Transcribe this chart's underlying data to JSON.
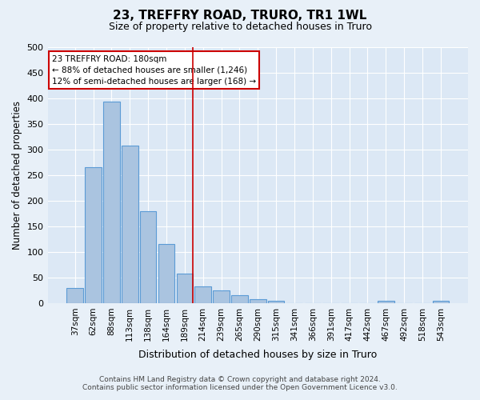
{
  "title": "23, TREFFRY ROAD, TRURO, TR1 1WL",
  "subtitle": "Size of property relative to detached houses in Truro",
  "xlabel": "Distribution of detached houses by size in Truro",
  "ylabel": "Number of detached properties",
  "footer_line1": "Contains HM Land Registry data © Crown copyright and database right 2024.",
  "footer_line2": "Contains public sector information licensed under the Open Government Licence v3.0.",
  "categories": [
    "37sqm",
    "62sqm",
    "88sqm",
    "113sqm",
    "138sqm",
    "164sqm",
    "189sqm",
    "214sqm",
    "239sqm",
    "265sqm",
    "290sqm",
    "315sqm",
    "341sqm",
    "366sqm",
    "391sqm",
    "417sqm",
    "442sqm",
    "467sqm",
    "492sqm",
    "518sqm",
    "543sqm"
  ],
  "values": [
    29,
    265,
    393,
    307,
    180,
    115,
    58,
    32,
    25,
    15,
    7,
    4,
    0,
    0,
    0,
    0,
    0,
    5,
    0,
    0,
    4
  ],
  "bar_color": "#aac4e0",
  "bar_edge_color": "#5b9bd5",
  "background_color": "#e8f0f8",
  "plot_bg_color": "#dce8f5",
  "marker_category_index": 6,
  "marker_color": "#cc0000",
  "annotation_line1": "23 TREFFRY ROAD: 180sqm",
  "annotation_line2": "← 88% of detached houses are smaller (1,246)",
  "annotation_line3": "12% of semi-detached houses are larger (168) →",
  "annotation_box_color": "#ffffff",
  "annotation_box_edge": "#cc0000",
  "ylim": [
    0,
    500
  ],
  "yticks": [
    0,
    50,
    100,
    150,
    200,
    250,
    300,
    350,
    400,
    450,
    500
  ]
}
